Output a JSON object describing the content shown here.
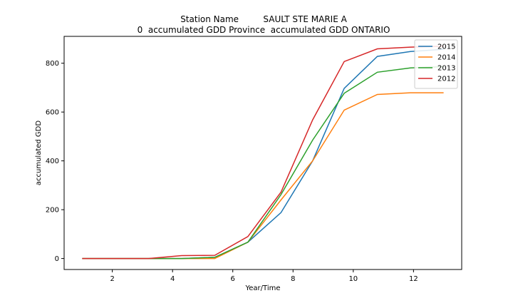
{
  "chart_data": {
    "type": "line",
    "title_lines": [
      "Station Name         SAULT STE MARIE A",
      "0  accumulated GDD Province  accumulated GDD ONTARIO"
    ],
    "xlabel": "Year/Time",
    "ylabel": "accumulated GDD",
    "xlim": [
      0.4,
      13.6
    ],
    "ylim": [
      -45,
      910
    ],
    "xticks": [
      2,
      4,
      6,
      8,
      10,
      12
    ],
    "yticks": [
      0,
      200,
      400,
      600,
      800
    ],
    "grid": false,
    "legend_position": "upper right",
    "series": [
      {
        "name": "2015",
        "color": "#1f77b4",
        "x": [
          1.0,
          2.1,
          3.2,
          4.3,
          5.4,
          6.5,
          7.6,
          8.65,
          9.7,
          10.8,
          11.9,
          13.0
        ],
        "y": [
          0,
          0,
          0,
          0,
          5,
          67,
          188,
          400,
          697,
          828,
          848,
          857
        ]
      },
      {
        "name": "2014",
        "color": "#ff7f0e",
        "x": [
          1.0,
          2.1,
          3.2,
          4.3,
          5.4,
          6.5,
          7.6,
          8.65,
          9.7,
          10.8,
          11.9,
          13.0
        ],
        "y": [
          0,
          0,
          0,
          0,
          0,
          67,
          240,
          400,
          608,
          672,
          679,
          679
        ]
      },
      {
        "name": "2013",
        "color": "#2ca02c",
        "x": [
          1.0,
          2.1,
          3.2,
          4.3,
          5.4,
          6.5,
          7.6,
          8.65,
          9.7,
          10.8,
          11.9,
          13.0
        ],
        "y": [
          0,
          0,
          0,
          0,
          5,
          67,
          262,
          485,
          677,
          763,
          781,
          786
        ]
      },
      {
        "name": "2012",
        "color": "#d62728",
        "x": [
          1.0,
          2.1,
          3.2,
          4.3,
          5.4,
          6.5,
          7.6,
          8.65,
          9.7,
          10.8,
          11.9,
          13.0
        ],
        "y": [
          0,
          0,
          0,
          12,
          13,
          90,
          272,
          568,
          807,
          859,
          866,
          870
        ]
      }
    ]
  }
}
